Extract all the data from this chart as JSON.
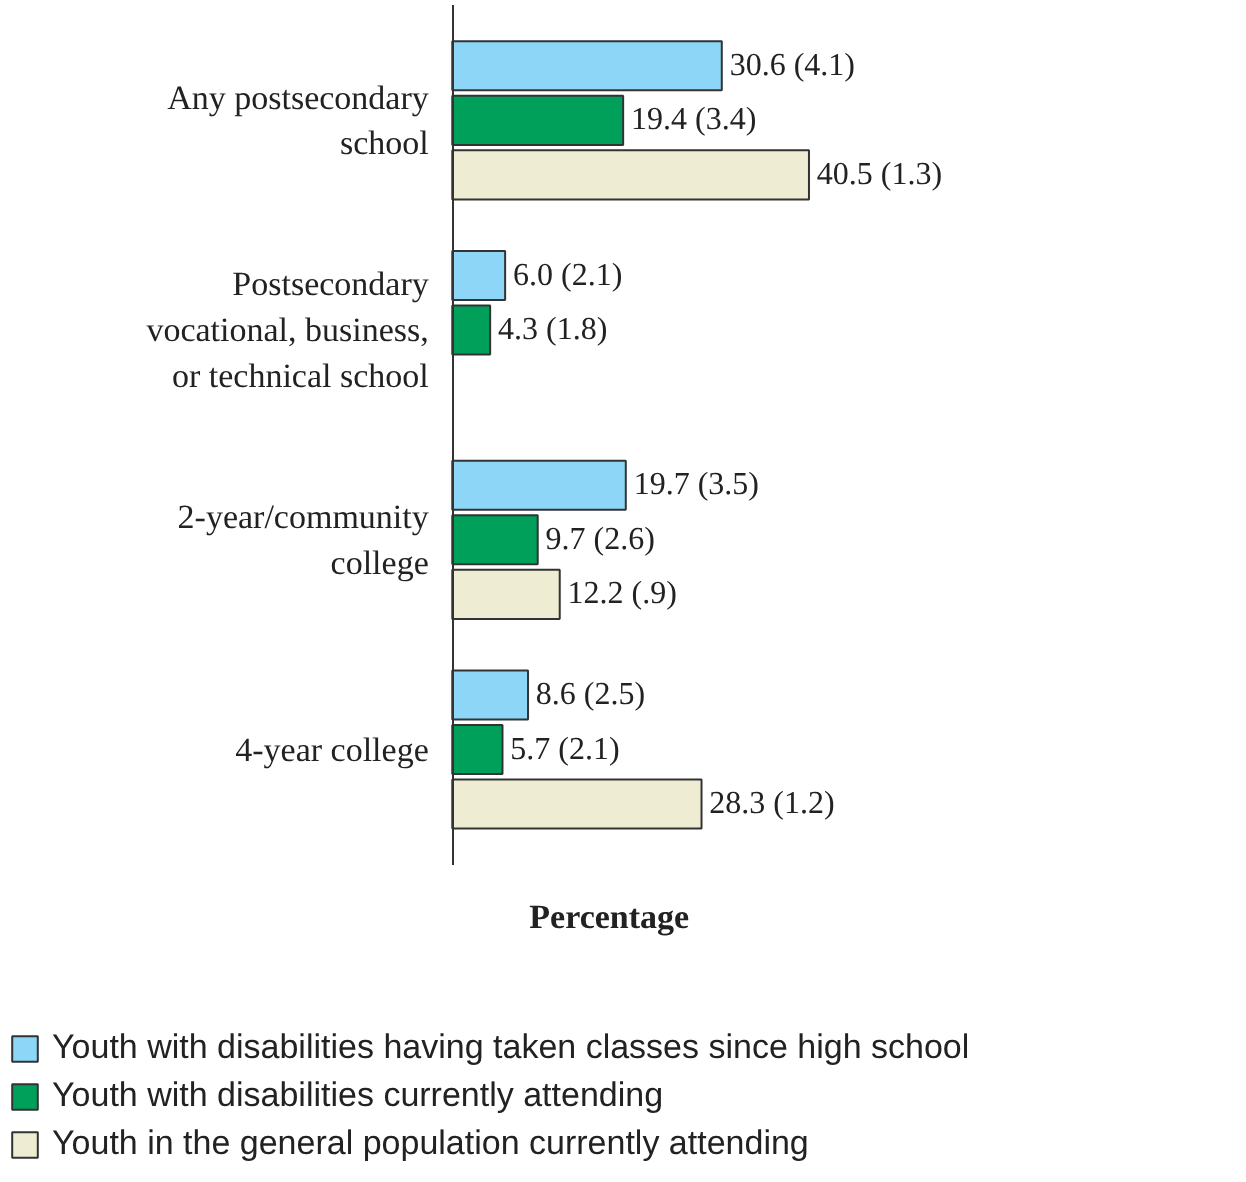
{
  "chart_data": {
    "type": "bar",
    "orientation": "horizontal",
    "xlabel": "Percentage",
    "categories": [
      "Any postsecondary school",
      "Postsecondary vocational, business, or technical school",
      "2-year/community college",
      "4-year college"
    ],
    "series": [
      {
        "name": "Youth with disabilities having taken classes since high school",
        "color": "#8dd6f7",
        "values": [
          30.6,
          6.0,
          19.7,
          8.6
        ],
        "value_labels": [
          "30.6 (4.1)",
          "6.0 (2.1)",
          "19.7 (3.5)",
          "8.6 (2.5)"
        ]
      },
      {
        "name": "Youth with disabilities currently attending",
        "color": "#00a05a",
        "values": [
          19.4,
          4.3,
          9.7,
          5.7
        ],
        "value_labels": [
          "19.4 (3.4)",
          "4.3 (1.8)",
          "9.7 (2.6)",
          "5.7 (2.1)"
        ]
      },
      {
        "name": "Youth in the general population currently attending",
        "color": "#efecd4",
        "values": [
          40.5,
          null,
          12.2,
          28.3
        ],
        "value_labels": [
          "40.5 (1.3)",
          null,
          "12.2 (.9)",
          "28.3 (1.2)"
        ]
      }
    ],
    "legend": "bottom",
    "tick_labels": "y",
    "grid": false
  }
}
